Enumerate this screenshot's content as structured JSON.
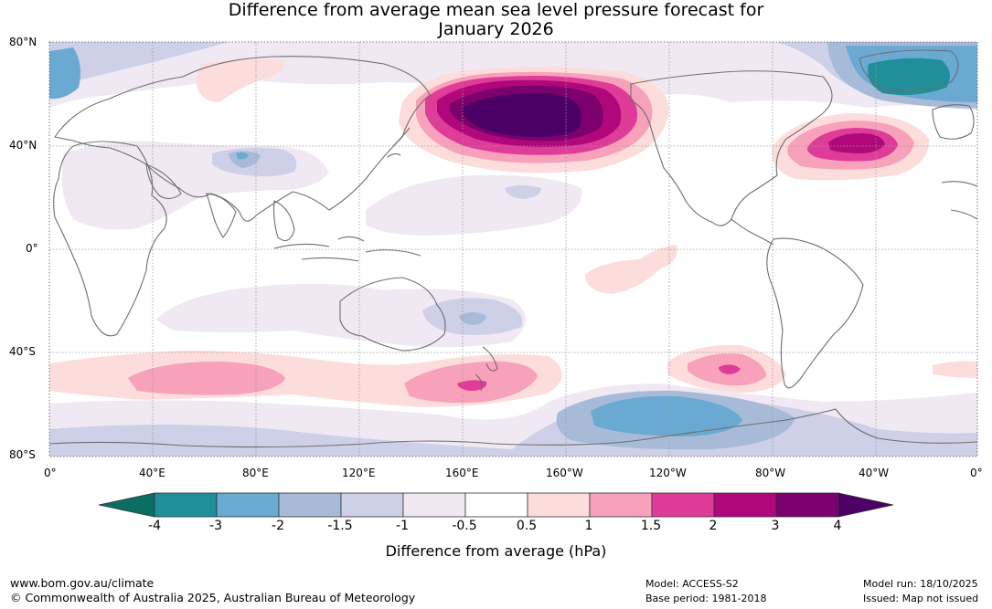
{
  "title": {
    "line1": "Difference from average mean sea level pressure forecast for",
    "line2": "January 2026"
  },
  "axes": {
    "lat_labels": [
      "80°N",
      "40°N",
      "0°",
      "40°S",
      "80°S"
    ],
    "lon_labels": [
      "0°",
      "40°E",
      "80°E",
      "120°E",
      "160°E",
      "160°W",
      "120°W",
      "80°W",
      "40°W",
      "0°"
    ]
  },
  "colorbar": {
    "title": "Difference from average (hPa)",
    "tick_labels": [
      "-4",
      "-3",
      "-2",
      "-1.5",
      "-1",
      "-0.5",
      "0.5",
      "1",
      "1.5",
      "2",
      "3",
      "4"
    ],
    "colors": [
      "#0b6e63",
      "#1f8f9a",
      "#6aaad2",
      "#a7bbd8",
      "#cdd0e6",
      "#f0e9f3",
      "#ffffff",
      "#fddcdc",
      "#f7a1bb",
      "#df3b98",
      "#b0087a",
      "#7d006f",
      "#4c0066"
    ]
  },
  "footer": {
    "website": "www.bom.gov.au/climate",
    "copyright": "© Commonwealth of Australia 2025, Australian Bureau of Meteorology",
    "model": "Model: ACCESS-S2",
    "base_period": "Base period: 1981-2018",
    "model_run": "Model run: 18/10/2025",
    "issued": "Issued: Map not issued"
  }
}
